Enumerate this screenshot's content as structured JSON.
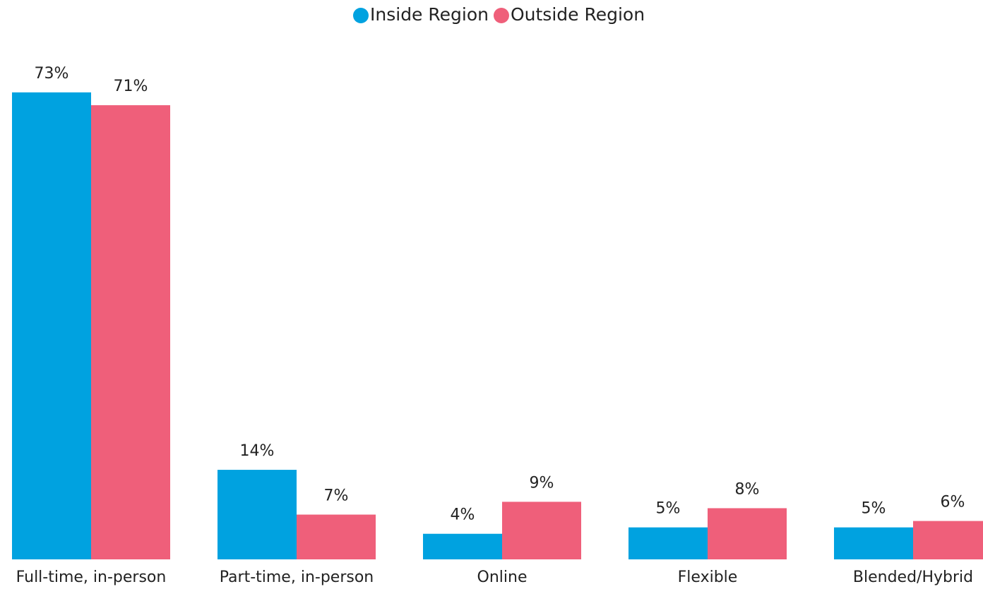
{
  "chart_data": {
    "type": "bar",
    "categories": [
      "Full-time, in-person",
      "Part-time, in-person",
      "Online",
      "Flexible",
      "Blended/Hybrid"
    ],
    "series": [
      {
        "name": "Inside Region",
        "color": "#00a2e0",
        "values": [
          73,
          14,
          4,
          5,
          5
        ],
        "value_labels": [
          "73%",
          "14%",
          "4%",
          "5%",
          "5%"
        ]
      },
      {
        "name": "Outside Region",
        "color": "#ef5f7a",
        "values": [
          71,
          7,
          9,
          8,
          6
        ],
        "value_labels": [
          "71%",
          "7%",
          "9%",
          "8%",
          "6%"
        ]
      }
    ],
    "legend": "top"
  }
}
